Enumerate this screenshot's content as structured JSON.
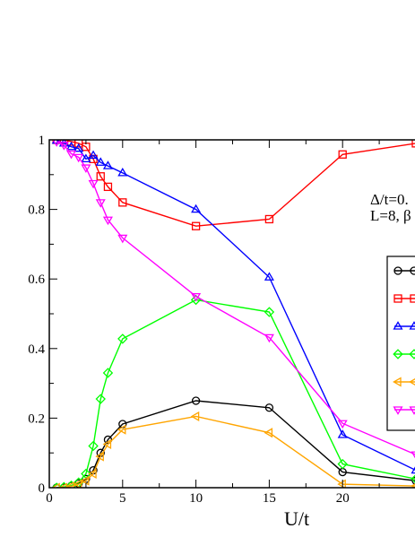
{
  "chart_data": {
    "type": "line",
    "title": "",
    "xlabel": "U/t",
    "ylabel": "",
    "xlim": [
      0,
      25
    ],
    "ylim": [
      0,
      1
    ],
    "xticks": [
      0,
      5,
      10,
      15,
      20
    ],
    "yticks": [
      0,
      0.2,
      0.4,
      0.6,
      0.8,
      1
    ],
    "xtick_labels": [
      "0",
      "5",
      "10",
      "15",
      "20"
    ],
    "ytick_labels": [
      "0",
      "0.2",
      "0.4",
      "0.6",
      "0.8",
      "1"
    ],
    "grid": false,
    "legend_position": "right",
    "annotations": [
      "Δ/t=0.",
      "L=8, β"
    ],
    "series": [
      {
        "color": "#000000",
        "marker": "circle",
        "x": [
          0.5,
          1,
          1.5,
          2,
          2.5,
          3,
          3.5,
          4,
          5,
          10,
          15,
          20,
          25
        ],
        "y": [
          0.0,
          0.0,
          0.005,
          0.012,
          0.025,
          0.05,
          0.1,
          0.138,
          0.183,
          0.25,
          0.23,
          0.045,
          0.02
        ]
      },
      {
        "color": "#ff0000",
        "marker": "square",
        "x": [
          0.5,
          1,
          1.5,
          2,
          2.5,
          3,
          3.5,
          4,
          5,
          10,
          15,
          20,
          25
        ],
        "y": [
          1.0,
          1.0,
          0.995,
          0.99,
          0.98,
          0.945,
          0.895,
          0.865,
          0.82,
          0.752,
          0.772,
          0.958,
          0.99
        ]
      },
      {
        "color": "#0000ff",
        "marker": "triangle-up",
        "x": [
          0.5,
          1,
          1.5,
          2,
          2.5,
          3,
          3.5,
          4,
          5,
          10,
          15,
          20,
          25
        ],
        "y": [
          0.998,
          0.99,
          0.98,
          0.975,
          0.945,
          0.955,
          0.935,
          0.925,
          0.905,
          0.8,
          0.605,
          0.152,
          0.05
        ]
      },
      {
        "color": "#00ff00",
        "marker": "diamond",
        "x": [
          0.5,
          1,
          1.5,
          2,
          2.5,
          3,
          3.5,
          4,
          5,
          10,
          15,
          20,
          25
        ],
        "y": [
          0.0,
          0.002,
          0.006,
          0.015,
          0.04,
          0.12,
          0.255,
          0.33,
          0.428,
          0.54,
          0.505,
          0.068,
          0.025
        ]
      },
      {
        "color": "#ffa500",
        "marker": "triangle-left",
        "x": [
          0.5,
          1,
          1.5,
          2,
          2.5,
          3,
          3.5,
          4,
          5,
          10,
          15,
          20,
          25
        ],
        "y": [
          0.0,
          0.0,
          0.004,
          0.01,
          0.02,
          0.04,
          0.09,
          0.125,
          0.167,
          0.205,
          0.158,
          0.01,
          0.005
        ]
      },
      {
        "color": "#ff00ff",
        "marker": "triangle-down",
        "x": [
          0.5,
          1,
          1.5,
          2,
          2.5,
          3,
          3.5,
          4,
          5,
          10,
          15,
          20,
          25
        ],
        "y": [
          0.995,
          0.985,
          0.96,
          0.95,
          0.92,
          0.875,
          0.82,
          0.77,
          0.718,
          0.55,
          0.432,
          0.185,
          0.095
        ]
      }
    ]
  }
}
